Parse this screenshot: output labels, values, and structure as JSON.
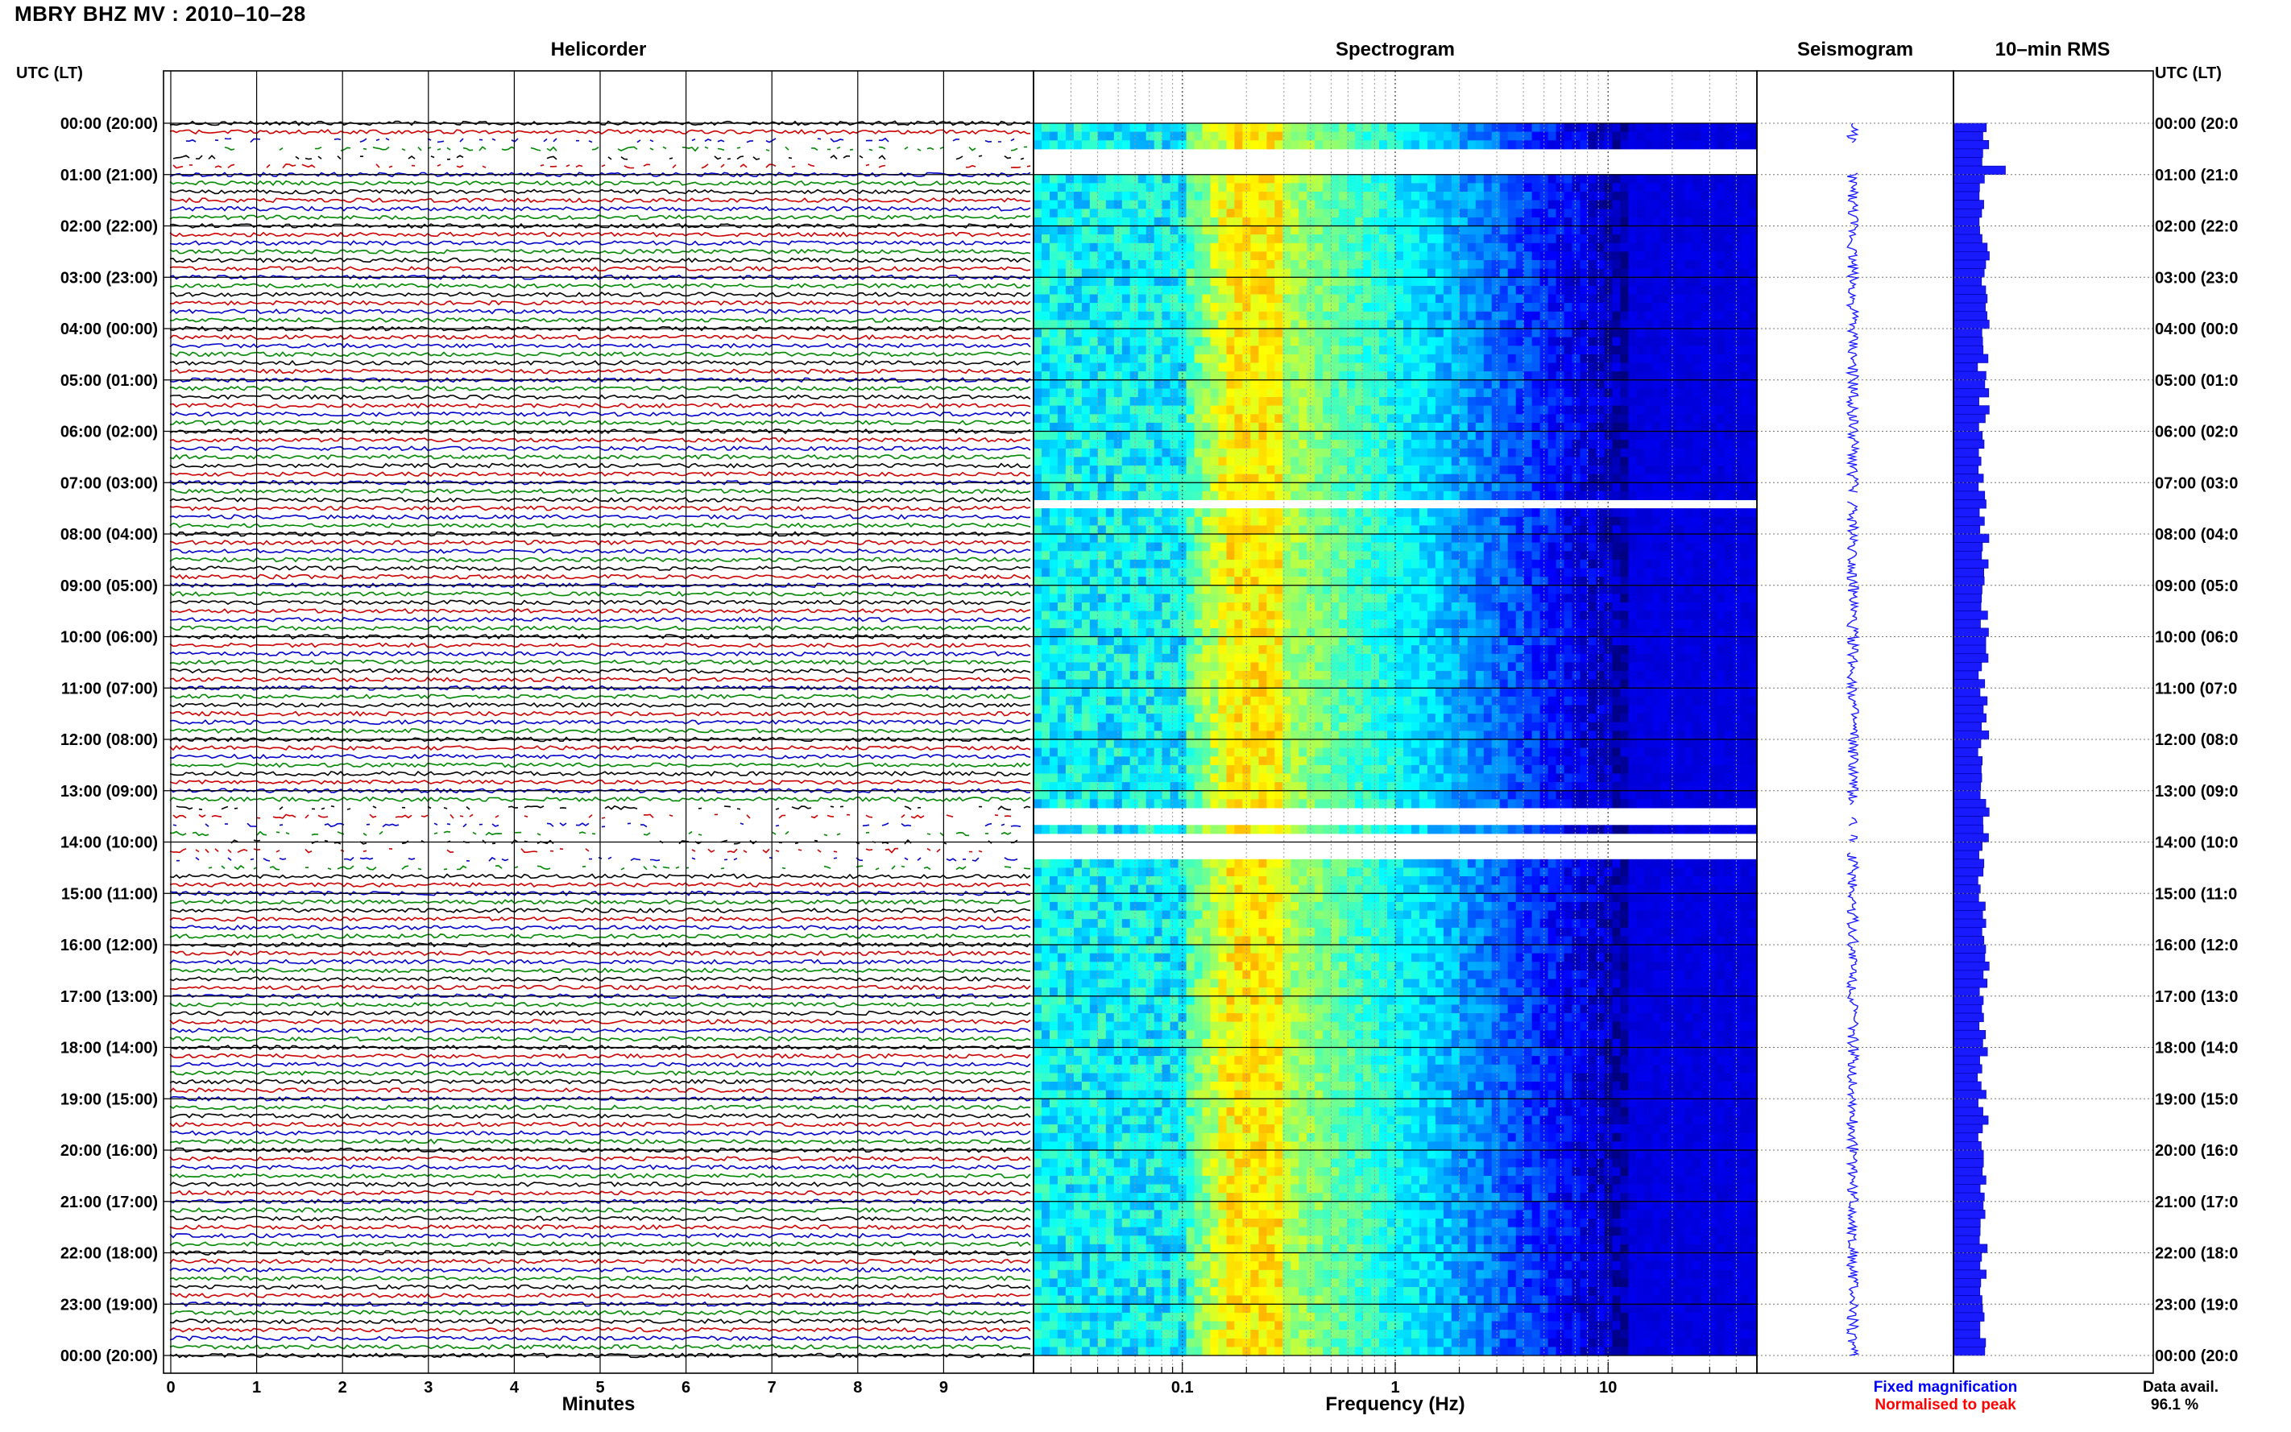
{
  "header": {
    "title": "MBRY BHZ MV : 2010–10–28"
  },
  "panels": {
    "helicorder": "Helicorder",
    "spectrogram": "Spectrogram",
    "seismogram": "Seismogram",
    "rms": "10–min RMS"
  },
  "utc_header": "UTC (LT)",
  "footer": {
    "x_title_minutes": "Minutes",
    "x_title_frequency": "Frequency (Hz)",
    "legend_fixed": "Fixed magnification",
    "legend_normalised": "Normalised to peak",
    "data_avail_label": "Data avail.",
    "data_avail_value": "96.1 %"
  },
  "colors": {
    "trace_cycle": [
      "#000000",
      "#cc0000",
      "#0000cc",
      "#008800"
    ],
    "legend_fixed": "#0000ff",
    "legend_normalised": "#ff0000",
    "rms_bar": "#1a1aff",
    "seismogram": "#1a1aff",
    "spectrogram_colormap": "jet"
  },
  "chart_data": [
    {
      "type": "helicorder",
      "title": "Helicorder",
      "xlabel": "Minutes",
      "x_ticks": [
        "0",
        "1",
        "2",
        "3",
        "4",
        "5",
        "6",
        "7",
        "8",
        "9"
      ],
      "xlim": [
        0,
        10
      ],
      "y_tick_labels_left": [
        "00:00 (20:00)",
        "01:00 (21:00)",
        "02:00 (22:00)",
        "03:00 (23:00)",
        "04:00 (00:00)",
        "05:00 (01:00)",
        "06:00 (02:00)",
        "07:00 (03:00)",
        "08:00 (04:00)",
        "09:00 (05:00)",
        "10:00 (06:00)",
        "11:00 (07:00)",
        "12:00 (08:00)",
        "13:00 (09:00)",
        "14:00 (10:00)",
        "15:00 (11:00)",
        "16:00 (12:00)",
        "17:00 (13:00)",
        "18:00 (14:00)",
        "19:00 (15:00)",
        "20:00 (16:00)",
        "21:00 (17:00)",
        "22:00 (18:00)",
        "23:00 (19:00)",
        "00:00 (20:00)"
      ],
      "traces_per_hour": 6,
      "trace_minutes": 10,
      "gaps_hours": [
        [
          0.33,
          0.98
        ],
        [
          13.3,
          14.5
        ]
      ]
    },
    {
      "type": "heatmap",
      "title": "Spectrogram",
      "xlabel": "Frequency (Hz)",
      "x_scale": "log",
      "x_tick_labels": [
        "0.1",
        "1",
        "10"
      ],
      "xlim": [
        0.02,
        50
      ],
      "ylim_hours": [
        0,
        24
      ],
      "colormap": "jet",
      "peak_frequency_hz": 0.2,
      "gaps_hours": [
        [
          0.4,
          0.95
        ],
        [
          7.2,
          7.35
        ],
        [
          13.3,
          13.5
        ],
        [
          13.7,
          13.85
        ],
        [
          14.0,
          14.2
        ]
      ]
    },
    {
      "type": "line",
      "title": "Seismogram",
      "legend": [
        "Fixed magnification",
        "Normalised to peak"
      ],
      "ylim_hours": [
        0,
        24
      ]
    },
    {
      "type": "bar",
      "title": "10–min RMS",
      "orientation": "horizontal",
      "bins_per_hour": 6,
      "ylim_hours": [
        0,
        24
      ],
      "y_tick_labels_right": [
        "00:00 (20:0",
        "01:00 (21:0",
        "02:00 (22:0",
        "03:00 (23:0",
        "04:00 (00:0",
        "05:00 (01:0",
        "06:00 (02:0",
        "07:00 (03:0",
        "08:00 (04:0",
        "09:00 (05:0",
        "10:00 (06:0",
        "11:00 (07:0",
        "12:00 (08:0",
        "13:00 (09:0",
        "14:00 (10:0",
        "15:00 (11:0",
        "16:00 (12:0",
        "17:00 (13:0",
        "18:00 (14:0",
        "19:00 (15:0",
        "20:00 (16:0",
        "21:00 (17:0",
        "22:00 (18:0",
        "23:00 (19:0",
        "00:00 (20:0"
      ]
    }
  ]
}
